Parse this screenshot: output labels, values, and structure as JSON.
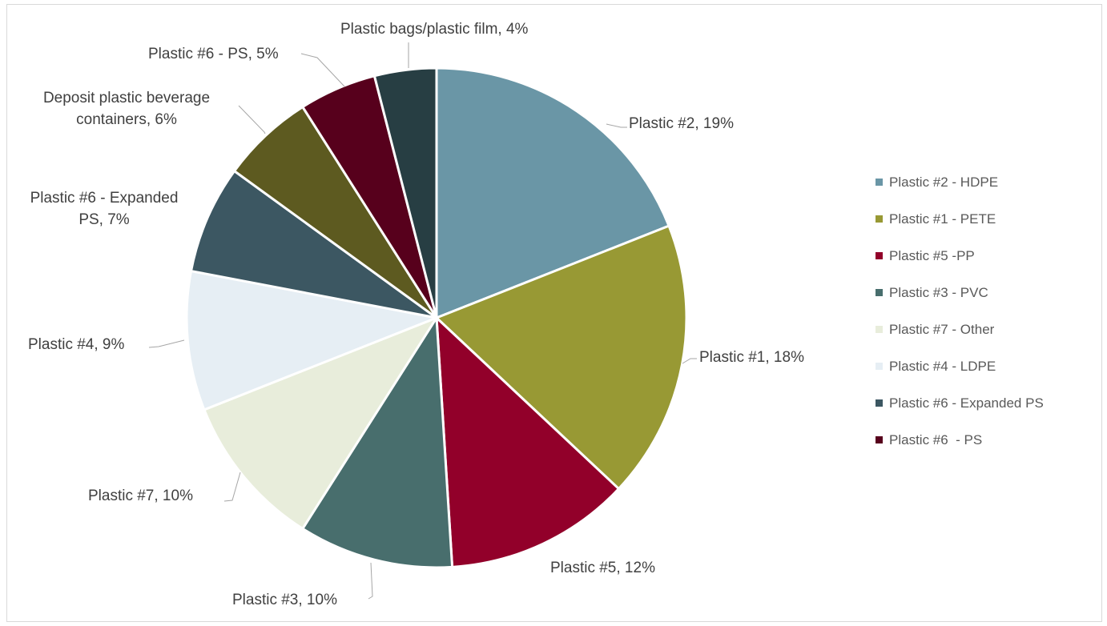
{
  "chart_data": {
    "type": "pie",
    "title": "",
    "slices": [
      {
        "category": "Plastic #2 - HDPE",
        "label": "Plastic #2, 19%",
        "value": 19,
        "color": "#6A96A6"
      },
      {
        "category": "Plastic #1 - PETE",
        "label": "Plastic #1, 18%",
        "value": 18,
        "color": "#989934"
      },
      {
        "category": "Plastic #5 -PP",
        "label": "Plastic #5, 12%",
        "value": 12,
        "color": "#92002A"
      },
      {
        "category": "Plastic #3 - PVC",
        "label": "Plastic #3, 10%",
        "value": 10,
        "color": "#486E6D"
      },
      {
        "category": "Plastic #7 - Other",
        "label": "Plastic #7, 10%",
        "value": 10,
        "color": "#E8EDDB"
      },
      {
        "category": "Plastic #4 - LDPE",
        "label": "Plastic #4, 9%",
        "value": 9,
        "color": "#E6EEF4"
      },
      {
        "category": "Plastic #6 - Expanded PS",
        "label": "Plastic #6 - Expanded PS, 7%",
        "value": 7,
        "color": "#3C5762"
      },
      {
        "category": "Deposit plastic beverage containers",
        "label": "Deposit plastic beverage containers, 6%",
        "value": 6,
        "color": "#5D5A20"
      },
      {
        "category": "Plastic #6  - PS",
        "label": "Plastic #6  - PS, 5%",
        "value": 5,
        "color": "#57001C"
      },
      {
        "category": "Plastic bags/plastic film",
        "label": "Plastic bags/plastic film, 4%",
        "value": 4,
        "color": "#273E43"
      }
    ],
    "legend": {
      "placement": "right",
      "entries": [
        "Plastic #2 - HDPE",
        "Plastic #1 - PETE",
        "Plastic #5 -PP",
        "Plastic #3 - PVC",
        "Plastic #7 - Other",
        "Plastic #4 - LDPE",
        "Plastic #6 - Expanded PS",
        "Plastic #6  - PS"
      ]
    }
  }
}
